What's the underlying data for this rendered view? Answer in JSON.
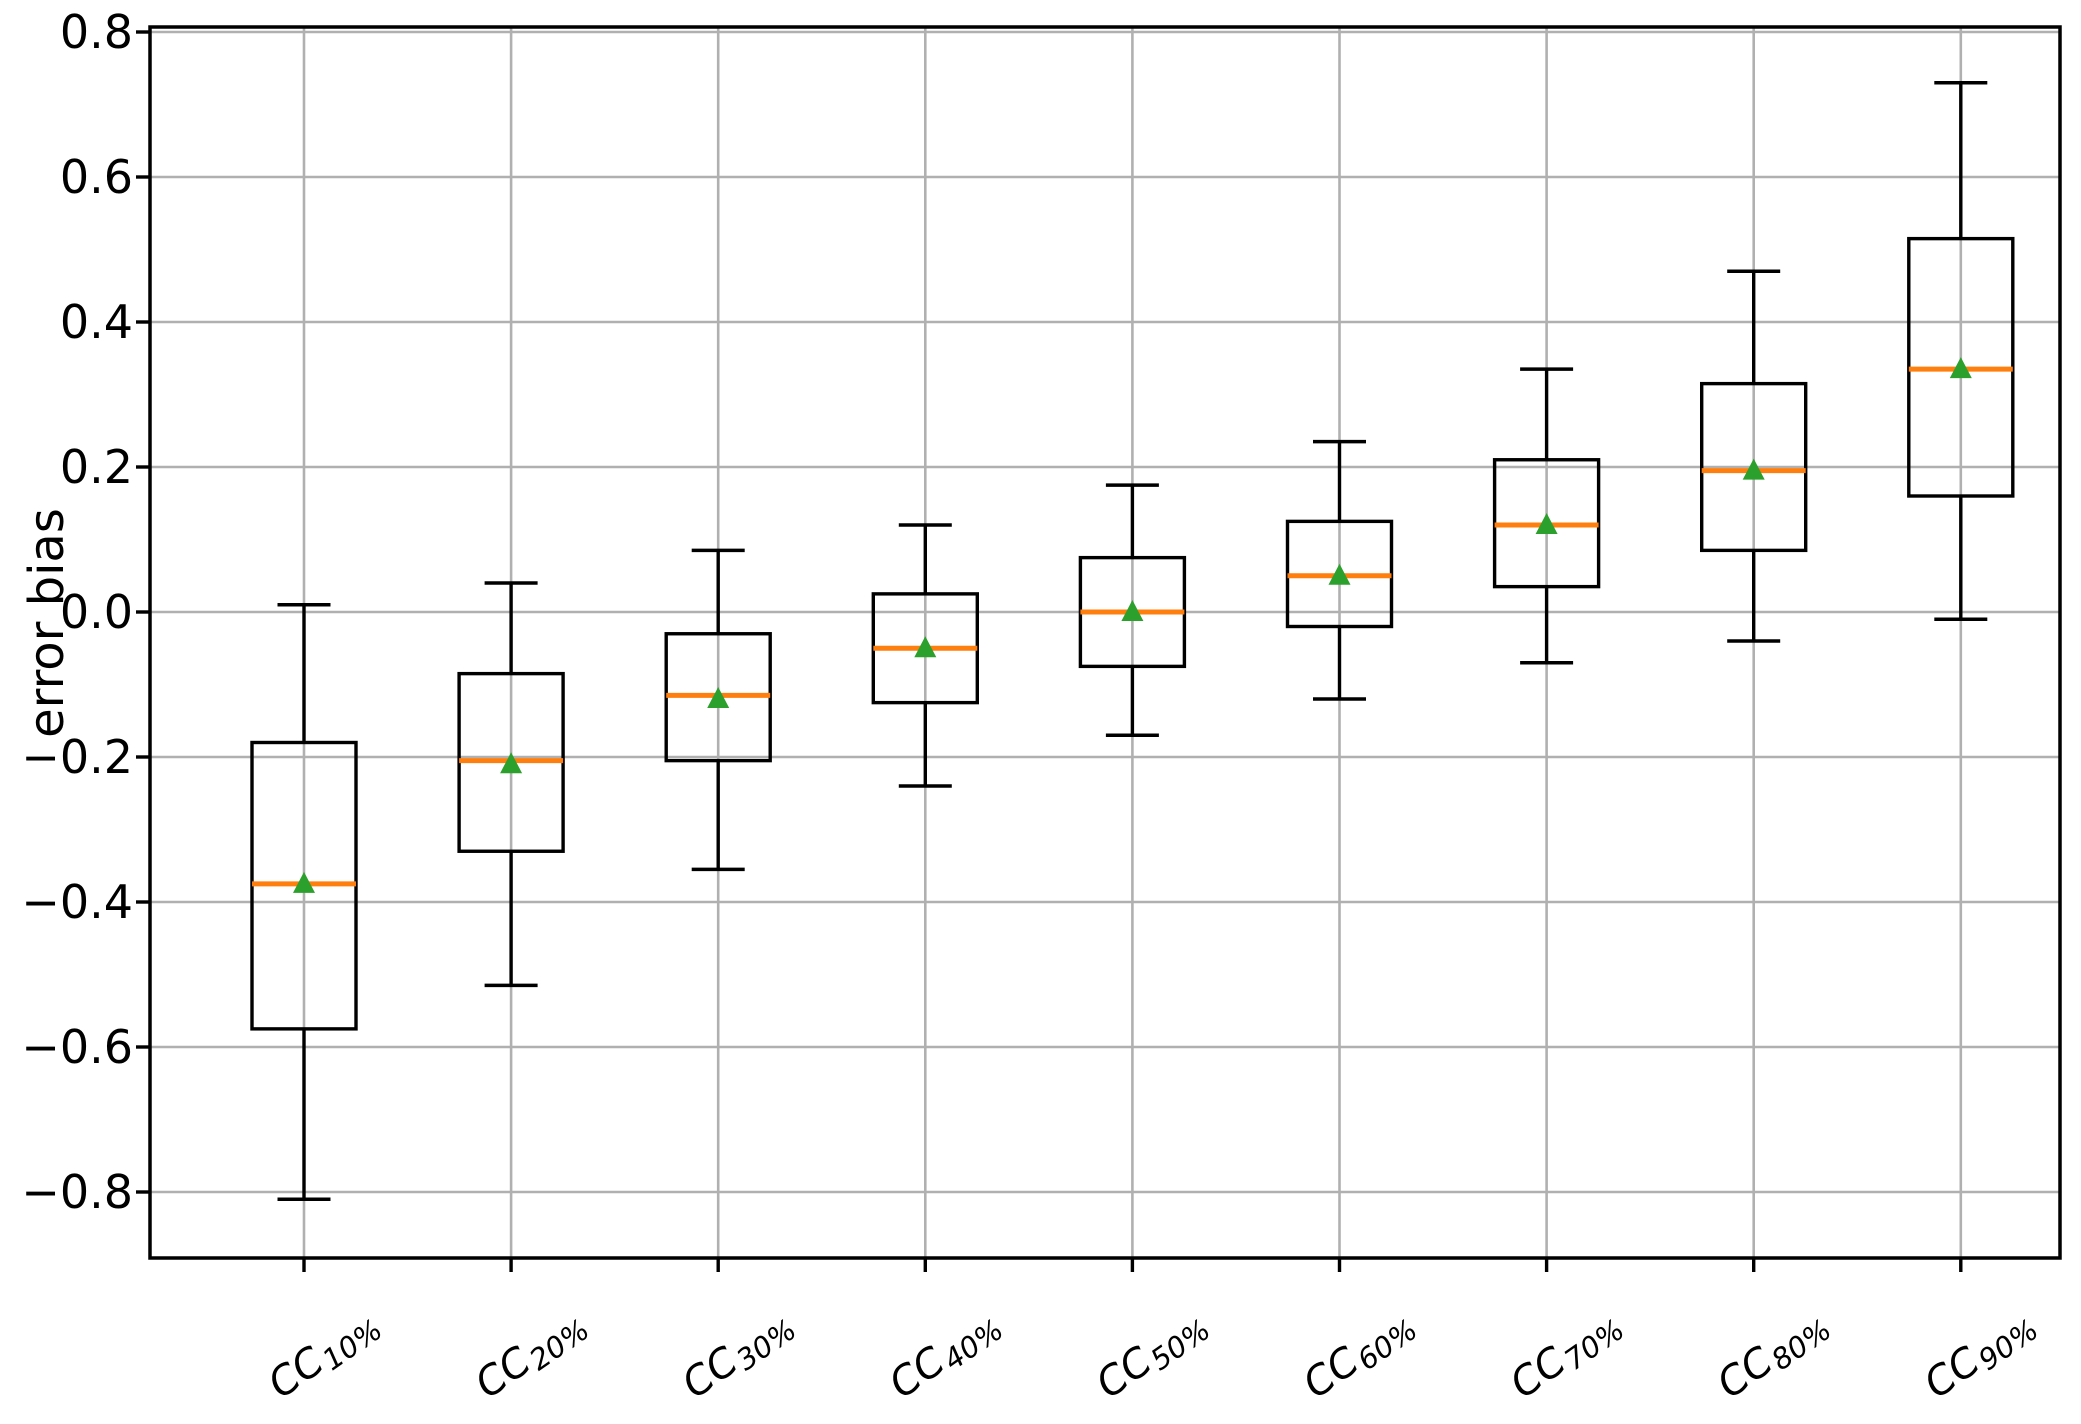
{
  "chart_data": {
    "type": "boxplot",
    "title": "",
    "xlabel": "",
    "ylabel": "error bias",
    "ylim": [
      -0.891,
      0.807
    ],
    "grid": true,
    "legend_position": "none",
    "mean_marker": "triangle-up",
    "colors": {
      "box_edge": "#000000",
      "median": "#ff7f0e",
      "mean": "#2ca02c",
      "grid": "#b0b0b0",
      "background": "#ffffff",
      "text": "#000000"
    },
    "yticks": [
      0.8,
      0.6,
      0.4,
      0.2,
      0.0,
      -0.2,
      -0.4,
      -0.6,
      -0.8
    ],
    "ytick_labels": [
      "0.8",
      "0.6",
      "0.4",
      "0.2",
      "0.0",
      "−0.2",
      "−0.4",
      "−0.6",
      "−0.8"
    ],
    "categories": [
      {
        "label": "CC10%",
        "main": "CC",
        "sub": "10%"
      },
      {
        "label": "CC20%",
        "main": "CC",
        "sub": "20%"
      },
      {
        "label": "CC30%",
        "main": "CC",
        "sub": "30%"
      },
      {
        "label": "CC40%",
        "main": "CC",
        "sub": "40%"
      },
      {
        "label": "CC50%",
        "main": "CC",
        "sub": "50%"
      },
      {
        "label": "CC60%",
        "main": "CC",
        "sub": "60%"
      },
      {
        "label": "CC70%",
        "main": "CC",
        "sub": "70%"
      },
      {
        "label": "CC80%",
        "main": "CC",
        "sub": "80%"
      },
      {
        "label": "CC90%",
        "main": "CC",
        "sub": "90%"
      }
    ],
    "boxes": [
      {
        "label": "CC10%",
        "whislo": -0.81,
        "q1": -0.575,
        "med": -0.375,
        "q3": -0.18,
        "whishi": 0.01,
        "mean": -0.375
      },
      {
        "label": "CC20%",
        "whislo": -0.515,
        "q1": -0.33,
        "med": -0.205,
        "q3": -0.085,
        "whishi": 0.04,
        "mean": -0.21
      },
      {
        "label": "CC30%",
        "whislo": -0.355,
        "q1": -0.205,
        "med": -0.115,
        "q3": -0.03,
        "whishi": 0.085,
        "mean": -0.12
      },
      {
        "label": "CC40%",
        "whislo": -0.24,
        "q1": -0.125,
        "med": -0.05,
        "q3": 0.025,
        "whishi": 0.12,
        "mean": -0.05
      },
      {
        "label": "CC50%",
        "whislo": -0.17,
        "q1": -0.075,
        "med": 0.0,
        "q3": 0.075,
        "whishi": 0.175,
        "mean": 0.0
      },
      {
        "label": "CC60%",
        "whislo": -0.12,
        "q1": -0.02,
        "med": 0.05,
        "q3": 0.125,
        "whishi": 0.235,
        "mean": 0.05
      },
      {
        "label": "CC70%",
        "whislo": -0.07,
        "q1": 0.035,
        "med": 0.12,
        "q3": 0.21,
        "whishi": 0.335,
        "mean": 0.12
      },
      {
        "label": "CC80%",
        "whislo": -0.04,
        "q1": 0.085,
        "med": 0.195,
        "q3": 0.315,
        "whishi": 0.47,
        "mean": 0.195
      },
      {
        "label": "CC90%",
        "whislo": -0.01,
        "q1": 0.16,
        "med": 0.335,
        "q3": 0.515,
        "whishi": 0.73,
        "mean": 0.335
      }
    ]
  }
}
